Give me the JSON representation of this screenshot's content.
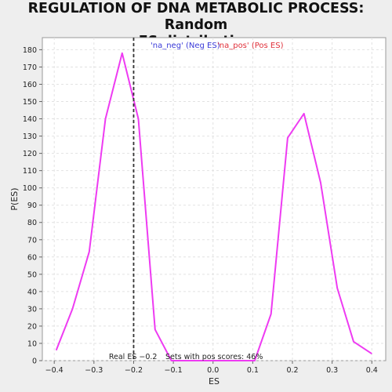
{
  "title_line1": "REGULATION OF DNA METABOLIC PROCESS: Random",
  "title_line2": "ES distribution",
  "chart_data": {
    "type": "line",
    "xlabel": "ES",
    "ylabel": "P(ES)",
    "xlim": [
      -0.43,
      0.435
    ],
    "ylim": [
      0,
      187
    ],
    "xticks": [
      -0.4,
      -0.3,
      -0.2,
      -0.1,
      0.0,
      0.1,
      0.2,
      0.3,
      0.4
    ],
    "xtick_labels": [
      "−0.4",
      "−0.3",
      "−0.2",
      "−0.1",
      "0.0",
      "0.1",
      "0.2",
      "0.3",
      "0.4"
    ],
    "yticks": [
      0,
      10,
      20,
      30,
      40,
      50,
      60,
      70,
      80,
      90,
      100,
      110,
      120,
      130,
      140,
      150,
      160,
      170,
      180
    ],
    "grid": true,
    "series": [
      {
        "color": "#ee3bf2",
        "x": [
          -0.395,
          -0.354,
          -0.312,
          -0.271,
          -0.229,
          -0.188,
          -0.146,
          -0.105,
          -0.063,
          -0.021,
          0.021,
          0.063,
          0.105,
          0.146,
          0.188,
          0.229,
          0.271,
          0.313,
          0.354,
          0.4
        ],
        "y": [
          6,
          30,
          63,
          140,
          178,
          140,
          18,
          0,
          0,
          0,
          0,
          0,
          0,
          27,
          129,
          143,
          103,
          42,
          11,
          4
        ]
      }
    ],
    "real_es": -0.2,
    "real_es_label": "Real ES −0.2",
    "pos_scores_label": "Sets with pos scores: 46%",
    "legend": [
      {
        "text": "'na_neg' (Neg ES)",
        "color": "#3a3ad8"
      },
      {
        "text": "'na_pos' (Pos ES)",
        "color": "#e0303a"
      }
    ]
  }
}
